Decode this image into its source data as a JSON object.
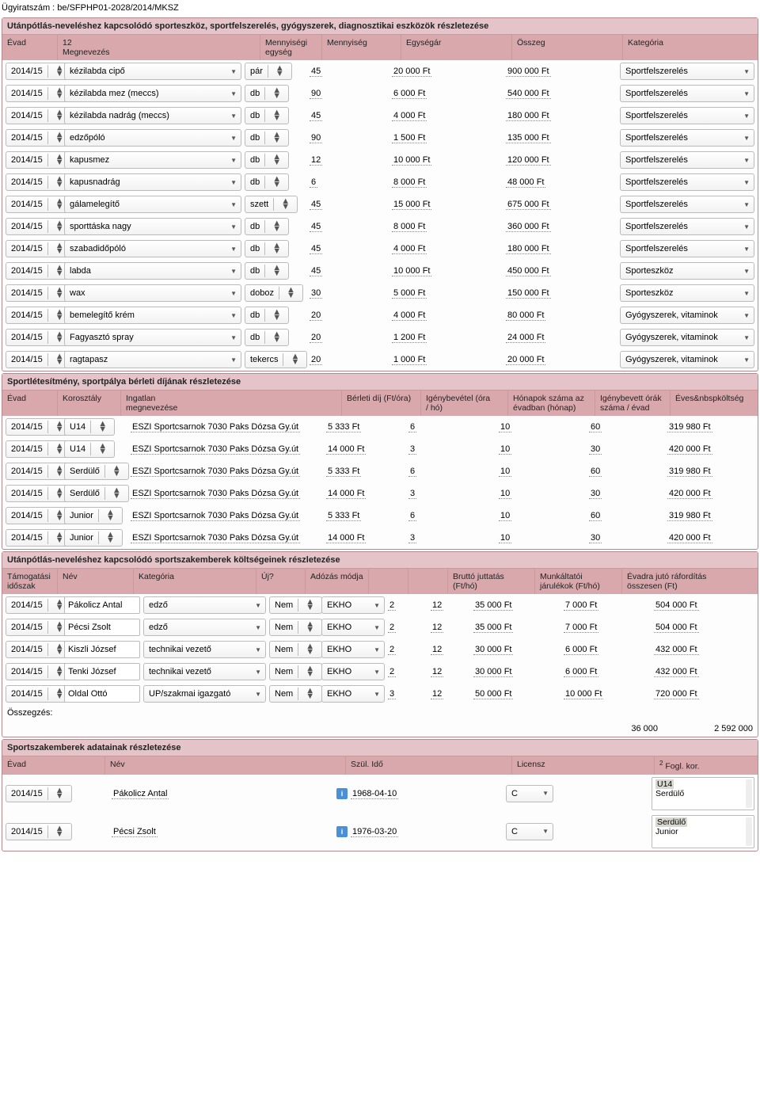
{
  "header": "Ügyiratszám : be/SFPHP01-2028/2014/MKSZ",
  "equip": {
    "title": "Utánpótlás-neveléshez kapcsolódó sporteszköz, sportfelszerelés, gyógyszerek, diagnosztikai eszközök részletezése",
    "cols": [
      "Évad",
      "12\nMegnevezés",
      "Mennyiségi\negység",
      "Mennyiség",
      "Egységár",
      "Összeg",
      "Kategória"
    ],
    "rows": [
      {
        "y": "2014/15",
        "name": "kézilabda cipő",
        "unit": "pár",
        "qty": "45",
        "price": "20 000 Ft",
        "sum": "900 000 Ft",
        "cat": "Sportfelszerelés"
      },
      {
        "y": "2014/15",
        "name": "kézilabda mez (meccs)",
        "unit": "db",
        "qty": "90",
        "price": "6 000 Ft",
        "sum": "540 000 Ft",
        "cat": "Sportfelszerelés"
      },
      {
        "y": "2014/15",
        "name": "kézilabda nadrág (meccs)",
        "unit": "db",
        "qty": "45",
        "price": "4 000 Ft",
        "sum": "180 000 Ft",
        "cat": "Sportfelszerelés"
      },
      {
        "y": "2014/15",
        "name": "edzőpóló",
        "unit": "db",
        "qty": "90",
        "price": "1 500 Ft",
        "sum": "135 000 Ft",
        "cat": "Sportfelszerelés"
      },
      {
        "y": "2014/15",
        "name": "kapusmez",
        "unit": "db",
        "qty": "12",
        "price": "10 000 Ft",
        "sum": "120 000 Ft",
        "cat": "Sportfelszerelés"
      },
      {
        "y": "2014/15",
        "name": "kapusnadrág",
        "unit": "db",
        "qty": "6",
        "price": "8 000 Ft",
        "sum": "48 000 Ft",
        "cat": "Sportfelszerelés"
      },
      {
        "y": "2014/15",
        "name": "gálamelegítő",
        "unit": "szett",
        "qty": "45",
        "price": "15 000 Ft",
        "sum": "675 000 Ft",
        "cat": "Sportfelszerelés"
      },
      {
        "y": "2014/15",
        "name": "sporttáska nagy",
        "unit": "db",
        "qty": "45",
        "price": "8 000 Ft",
        "sum": "360 000 Ft",
        "cat": "Sportfelszerelés"
      },
      {
        "y": "2014/15",
        "name": "szabadidőpóló",
        "unit": "db",
        "qty": "45",
        "price": "4 000 Ft",
        "sum": "180 000 Ft",
        "cat": "Sportfelszerelés"
      },
      {
        "y": "2014/15",
        "name": "labda",
        "unit": "db",
        "qty": "45",
        "price": "10 000 Ft",
        "sum": "450 000 Ft",
        "cat": "Sporteszköz"
      },
      {
        "y": "2014/15",
        "name": "wax",
        "unit": "doboz",
        "qty": "30",
        "price": "5 000 Ft",
        "sum": "150 000 Ft",
        "cat": "Sporteszköz"
      },
      {
        "y": "2014/15",
        "name": "bemelegítő krém",
        "unit": "db",
        "qty": "20",
        "price": "4 000 Ft",
        "sum": "80 000 Ft",
        "cat": "Gyógyszerek, vitaminok"
      },
      {
        "y": "2014/15",
        "name": "Fagyasztó spray",
        "unit": "db",
        "qty": "20",
        "price": "1 200 Ft",
        "sum": "24 000 Ft",
        "cat": "Gyógyszerek, vitaminok"
      },
      {
        "y": "2014/15",
        "name": "ragtapasz",
        "unit": "tekercs",
        "qty": "20",
        "price": "1 000 Ft",
        "sum": "20 000 Ft",
        "cat": "Gyógyszerek, vitaminok"
      }
    ]
  },
  "rental": {
    "title": "Sportlétesítmény, sportpálya bérleti díjának részletezése",
    "cols": [
      "Évad",
      "Korosztály",
      "Ingatlan\nmegnevezése",
      "Bérleti díj (Ft/óra)",
      "Igénybevétel (óra\n/ hó)",
      "Hónapok száma az\névadban (hónap)",
      "Igénybevett órák\nszáma / évad",
      "Éves&nbspköltség"
    ],
    "rows": [
      {
        "y": "2014/15",
        "age": "U14",
        "place": "ESZI Sportcsarnok 7030 Paks Dózsa Gy.út",
        "fee": "5 333 Ft",
        "hrs": "6",
        "mon": "10",
        "tot": "60",
        "cost": "319 980 Ft"
      },
      {
        "y": "2014/15",
        "age": "U14",
        "place": "ESZI Sportcsarnok 7030 Paks Dózsa Gy.út",
        "fee": "14 000 Ft",
        "hrs": "3",
        "mon": "10",
        "tot": "30",
        "cost": "420 000 Ft"
      },
      {
        "y": "2014/15",
        "age": "Serdülő",
        "place": "ESZI Sportcsarnok 7030 Paks Dózsa Gy.út",
        "fee": "5 333 Ft",
        "hrs": "6",
        "mon": "10",
        "tot": "60",
        "cost": "319 980 Ft"
      },
      {
        "y": "2014/15",
        "age": "Serdülő",
        "place": "ESZI Sportcsarnok 7030 Paks Dózsa Gy.út",
        "fee": "14 000 Ft",
        "hrs": "3",
        "mon": "10",
        "tot": "30",
        "cost": "420 000 Ft"
      },
      {
        "y": "2014/15",
        "age": "Junior",
        "place": "ESZI Sportcsarnok 7030 Paks Dózsa Gy.út",
        "fee": "5 333 Ft",
        "hrs": "6",
        "mon": "10",
        "tot": "60",
        "cost": "319 980 Ft"
      },
      {
        "y": "2014/15",
        "age": "Junior",
        "place": "ESZI Sportcsarnok 7030 Paks Dózsa Gy.út",
        "fee": "14 000 Ft",
        "hrs": "3",
        "mon": "10",
        "tot": "30",
        "cost": "420 000 Ft"
      }
    ]
  },
  "staff": {
    "title": "Utánpótlás-neveléshez kapcsolódó sportszakemberek költségeinek részletezése",
    "cols": [
      "Támogatási\nidőszak",
      "Név",
      "Kategória",
      "Új?",
      "Adózás módja",
      "",
      "",
      "Bruttó juttatás\n(Ft/hó)",
      "Munkáltatói\njárulékok (Ft/hó)",
      "Évadra jutó ráfordítás\nösszesen (Ft)"
    ],
    "rows": [
      {
        "y": "2014/15",
        "name": "Pákolicz Antal",
        "cat": "edző",
        "new": "Nem",
        "tax": "EKHO",
        "a": "2",
        "b": "12",
        "g": "35 000 Ft",
        "c": "7 000 Ft",
        "t": "504 000 Ft"
      },
      {
        "y": "2014/15",
        "name": "Pécsi Zsolt",
        "cat": "edző",
        "new": "Nem",
        "tax": "EKHO",
        "a": "2",
        "b": "12",
        "g": "35 000 Ft",
        "c": "7 000 Ft",
        "t": "504 000 Ft"
      },
      {
        "y": "2014/15",
        "name": "Kiszli József",
        "cat": "technikai vezető",
        "new": "Nem",
        "tax": "EKHO",
        "a": "2",
        "b": "12",
        "g": "30 000 Ft",
        "c": "6 000 Ft",
        "t": "432 000 Ft"
      },
      {
        "y": "2014/15",
        "name": "Tenki József",
        "cat": "technikai vezető",
        "new": "Nem",
        "tax": "EKHO",
        "a": "2",
        "b": "12",
        "g": "30 000 Ft",
        "c": "6 000 Ft",
        "t": "432 000 Ft"
      },
      {
        "y": "2014/15",
        "name": "Oldal Ottó",
        "cat": "UP/szakmai igazgató",
        "new": "Nem",
        "tax": "EKHO",
        "a": "3",
        "b": "12",
        "g": "50 000 Ft",
        "c": "10 000 Ft",
        "t": "720 000 Ft"
      }
    ],
    "sumLabel": "Összegzés:",
    "sum1": "36 000",
    "sum2": "2 592 000"
  },
  "people": {
    "title": "Sportszakemberek adatainak részletezése",
    "cols": [
      "Évad",
      "Név",
      "Szül. Idő",
      "Licensz",
      "Fogl. kor."
    ],
    "colsSup": "2",
    "rows": [
      {
        "y": "2014/15",
        "name": "Pákolicz Antal",
        "birth": "1968-04-10",
        "lic": "C",
        "sel": "U14",
        "other": "Serdülő"
      },
      {
        "y": "2014/15",
        "name": "Pécsi Zsolt",
        "birth": "1976-03-20",
        "lic": "C",
        "sel": "Serdülő",
        "other": "Junior"
      }
    ]
  }
}
